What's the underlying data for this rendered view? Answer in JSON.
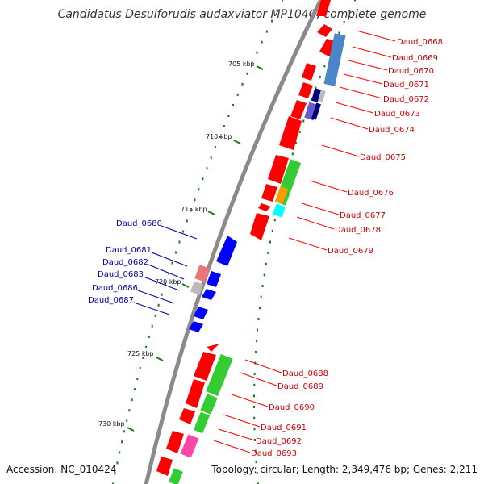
{
  "title": "Candidatus Desulforudis audaxviator MP104C, complete genome",
  "accession": "Accession: NC_010424",
  "topology": "Topology: circular; Length: 2,349,476 bp; Genes: 2,211",
  "colors": {
    "backbone": "#8a8a8a",
    "forward_label": "#cc0000",
    "reverse_label": "#0000aa",
    "tick": "#1a7a1a",
    "red_gene": "#ff0000",
    "blue_gene": "#0000ff",
    "green_gene": "#33cc33",
    "steelblue_gene": "#4a86c8",
    "navy_gene": "#000080",
    "slate_gene": "#6a5acd",
    "orange_gene": "#ff9900",
    "cyan_gene": "#00ffff",
    "pink_gene": "#e87878",
    "gray_gene": "#bbbbbb",
    "magenta_gene": "#ff44aa"
  },
  "kbp_markers": [
    "705 kbp",
    "710 kbp",
    "715 kbp",
    "720 kbp",
    "725 kbp",
    "730 kbp"
  ],
  "forward_labels": [
    "Daud_0668",
    "Daud_0669",
    "Daud_0670",
    "Daud_0671",
    "Daud_0672",
    "Daud_0673",
    "Daud_0674",
    "Daud_0675",
    "Daud_0676",
    "Daud_0677",
    "Daud_0678",
    "Daud_0679",
    "Daud_0688",
    "Daud_0689",
    "Daud_0690",
    "Daud_0691",
    "Daud_0692",
    "Daud_0693"
  ],
  "reverse_labels": [
    "Daud_0680",
    "Daud_0681",
    "Daud_0682",
    "Daud_0683",
    "Daud_0686",
    "Daud_0687"
  ]
}
